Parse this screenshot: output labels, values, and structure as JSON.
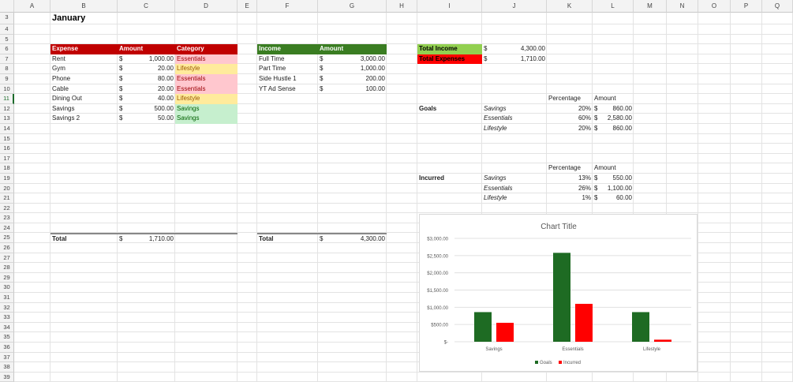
{
  "columns": [
    "A",
    "B",
    "C",
    "D",
    "E",
    "F",
    "G",
    "H",
    "I",
    "J",
    "K",
    "L",
    "M",
    "N",
    "O",
    "P",
    "Q"
  ],
  "rows": [
    3,
    4,
    5,
    6,
    7,
    8,
    9,
    10,
    11,
    12,
    13,
    14,
    15,
    16,
    17,
    18,
    19,
    20,
    21,
    22,
    23,
    24,
    25,
    26,
    27,
    28,
    29,
    30,
    31,
    32,
    33,
    34,
    35,
    36,
    37,
    38,
    39
  ],
  "selected_row": 11,
  "title": "January",
  "expenses": {
    "headers": [
      "Expense",
      "Amount",
      "Category"
    ],
    "items": [
      {
        "name": "Rent",
        "cur": "$",
        "amount": "1,000.00",
        "category": "Essentials"
      },
      {
        "name": "Gym",
        "cur": "$",
        "amount": "20.00",
        "category": "Lifestyle"
      },
      {
        "name": "Phone",
        "cur": "$",
        "amount": "80.00",
        "category": "Essentials"
      },
      {
        "name": "Cable",
        "cur": "$",
        "amount": "20.00",
        "category": "Essentials"
      },
      {
        "name": "Dining Out",
        "cur": "$",
        "amount": "40.00",
        "category": "Lifestyle"
      },
      {
        "name": "Savings",
        "cur": "$",
        "amount": "500.00",
        "category": "Savings"
      },
      {
        "name": "Savings 2",
        "cur": "$",
        "amount": "50.00",
        "category": "Savings"
      }
    ],
    "total_label": "Total",
    "total_cur": "$",
    "total": "1,710.00"
  },
  "income": {
    "headers": [
      "Income",
      "Amount"
    ],
    "items": [
      {
        "name": "Full Time",
        "cur": "$",
        "amount": "3,000.00"
      },
      {
        "name": "Part Time",
        "cur": "$",
        "amount": "1,000.00"
      },
      {
        "name": "Side Hustle 1",
        "cur": "$",
        "amount": "200.00"
      },
      {
        "name": "YT Ad Sense",
        "cur": "$",
        "amount": "100.00"
      }
    ],
    "total_label": "Total",
    "total_cur": "$",
    "total": "4,300.00"
  },
  "summary": {
    "total_income_label": "Total Income",
    "total_income_cur": "$",
    "total_income": "4,300.00",
    "total_expenses_label": "Total Expenses",
    "total_expenses_cur": "$",
    "total_expenses": "1,710.00"
  },
  "goals": {
    "label": "Goals",
    "pct_header": "Percentage",
    "amt_header": "Amount",
    "items": [
      {
        "name": "Savings",
        "pct": "20%",
        "cur": "$",
        "amount": "860.00"
      },
      {
        "name": "Essentials",
        "pct": "60%",
        "cur": "$",
        "amount": "2,580.00"
      },
      {
        "name": "Lifestyle",
        "pct": "20%",
        "cur": "$",
        "amount": "860.00"
      }
    ]
  },
  "incurred": {
    "label": "Incurred",
    "pct_header": "Percentage",
    "amt_header": "Amount",
    "items": [
      {
        "name": "Savings",
        "pct": "13%",
        "cur": "$",
        "amount": "550.00"
      },
      {
        "name": "Essentials",
        "pct": "26%",
        "cur": "$",
        "amount": "1,100.00"
      },
      {
        "name": "Lifestyle",
        "pct": "1%",
        "cur": "$",
        "amount": "60.00"
      }
    ]
  },
  "chart_data": {
    "type": "bar",
    "title": "Chart Title",
    "categories": [
      "Savings",
      "Essentials",
      "Lifestyle"
    ],
    "series": [
      {
        "name": "Goals",
        "values": [
          860,
          2580,
          860
        ],
        "color": "#1e6b23"
      },
      {
        "name": "Incurred",
        "values": [
          550,
          1100,
          60
        ],
        "color": "#ff0000"
      }
    ],
    "ylim": [
      0,
      3000
    ],
    "yticks": [
      "$-",
      "$500.00",
      "$1,000.00",
      "$1,500.00",
      "$2,000.00",
      "$2,500.00",
      "$3,000.00"
    ],
    "grid": true,
    "legend": "bottom"
  }
}
